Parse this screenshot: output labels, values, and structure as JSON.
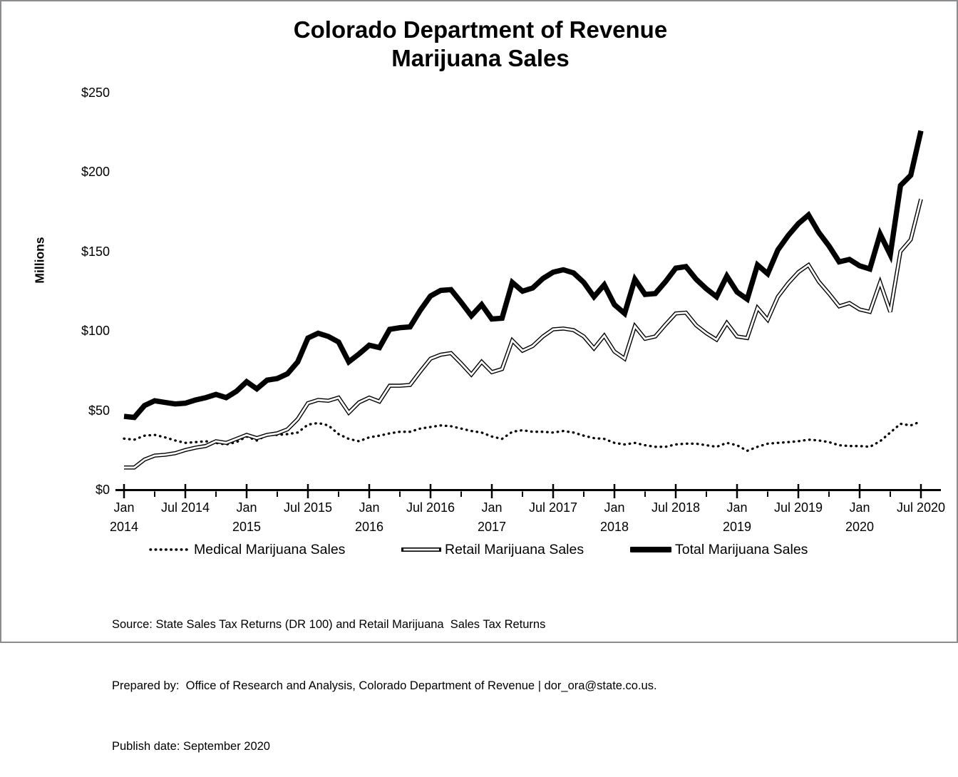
{
  "title": {
    "line1": "Colorado Department of Revenue",
    "line2": "Marijuana Sales"
  },
  "y_axis": {
    "label": "Millions",
    "ticks": [
      {
        "label": "$250",
        "value": 250
      },
      {
        "label": "$200",
        "value": 200
      },
      {
        "label": "$150",
        "value": 150
      },
      {
        "label": "$100",
        "value": 100
      },
      {
        "label": "$50",
        "value": 50
      },
      {
        "label": "$0",
        "value": 0
      }
    ]
  },
  "x_axis": {
    "ticks": [
      {
        "line1": "Jan",
        "line2": "2014"
      },
      {
        "line1": "Jul 2014",
        "line2": ""
      },
      {
        "line1": "Jan",
        "line2": "2015"
      },
      {
        "line1": "Jul 2015",
        "line2": ""
      },
      {
        "line1": "Jan",
        "line2": "2016"
      },
      {
        "line1": "Jul 2016",
        "line2": ""
      },
      {
        "line1": "Jan",
        "line2": "2017"
      },
      {
        "line1": "Jul 2017",
        "line2": ""
      },
      {
        "line1": "Jan",
        "line2": "2018"
      },
      {
        "line1": "Jul 2018",
        "line2": ""
      },
      {
        "line1": "Jan",
        "line2": "2019"
      },
      {
        "line1": "Jul 2019",
        "line2": ""
      },
      {
        "line1": "Jan",
        "line2": "2020"
      },
      {
        "line1": "Jul 2020",
        "line2": ""
      }
    ]
  },
  "legend": {
    "medical_label": "Medical Marijuana Sales",
    "retail_label": "Retail Marijuana Sales",
    "total_label": "Total Marijuana Sales"
  },
  "footer": {
    "source": "Source: State Sales Tax Returns (DR 100) and Retail Marijuana  Sales Tax Returns",
    "prepared_by": "Prepared by:  Office of Research and Analysis, Colorado Department of Revenue | dor_ora@state.co.us.",
    "publish_date": "Publish date: September 2020"
  },
  "colors": {
    "line_color": "#000000",
    "background": "#ffffff",
    "frame_border": "#898d90"
  },
  "chart_data": {
    "type": "line",
    "title": "Colorado Department of Revenue Marijuana Sales",
    "ylabel": "Millions",
    "unit": "USD millions",
    "ylim": [
      0,
      250
    ],
    "grid": false,
    "legend_position": "bottom",
    "x_frequency": "monthly",
    "x_start": "Jan 2014",
    "x_end": "Jul 2020",
    "months": [
      "Jan 2014",
      "Feb 2014",
      "Mar 2014",
      "Apr 2014",
      "May 2014",
      "Jun 2014",
      "Jul 2014",
      "Aug 2014",
      "Sep 2014",
      "Oct 2014",
      "Nov 2014",
      "Dec 2014",
      "Jan 2015",
      "Feb 2015",
      "Mar 2015",
      "Apr 2015",
      "May 2015",
      "Jun 2015",
      "Jul 2015",
      "Aug 2015",
      "Sep 2015",
      "Oct 2015",
      "Nov 2015",
      "Dec 2015",
      "Jan 2016",
      "Feb 2016",
      "Mar 2016",
      "Apr 2016",
      "May 2016",
      "Jun 2016",
      "Jul 2016",
      "Aug 2016",
      "Sep 2016",
      "Oct 2016",
      "Nov 2016",
      "Dec 2016",
      "Jan 2017",
      "Feb 2017",
      "Mar 2017",
      "Apr 2017",
      "May 2017",
      "Jun 2017",
      "Jul 2017",
      "Aug 2017",
      "Sep 2017",
      "Oct 2017",
      "Nov 2017",
      "Dec 2017",
      "Jan 2018",
      "Feb 2018",
      "Mar 2018",
      "Apr 2018",
      "May 2018",
      "Jun 2018",
      "Jul 2018",
      "Aug 2018",
      "Sep 2018",
      "Oct 2018",
      "Nov 2018",
      "Dec 2018",
      "Jan 2019",
      "Feb 2019",
      "Mar 2019",
      "Apr 2019",
      "May 2019",
      "Jun 2019",
      "Jul 2019",
      "Aug 2019",
      "Sep 2019",
      "Oct 2019",
      "Nov 2019",
      "Dec 2019",
      "Jan 2020",
      "Feb 2020",
      "Mar 2020",
      "Apr 2020",
      "May 2020",
      "Jun 2020",
      "Jul 2020"
    ],
    "series": [
      {
        "name": "Medical Marijuana Sales",
        "style": "dotted",
        "values": [
          32.2,
          31.5,
          34.0,
          34.5,
          33.0,
          31.0,
          29.5,
          30.0,
          30.5,
          29.5,
          28.5,
          30.0,
          33.5,
          31.0,
          34.5,
          34.5,
          35.0,
          36.0,
          41.0,
          42.0,
          40.5,
          35.0,
          32.0,
          30.5,
          33.0,
          34.0,
          35.5,
          36.5,
          36.5,
          38.5,
          39.5,
          40.5,
          40.0,
          38.5,
          37.0,
          36.0,
          33.5,
          32.0,
          36.5,
          37.5,
          36.5,
          36.5,
          36.0,
          37.0,
          36.0,
          34.0,
          32.5,
          32.0,
          29.5,
          28.5,
          29.5,
          28.0,
          27.0,
          27.0,
          28.5,
          29.0,
          29.0,
          28.0,
          27.0,
          29.5,
          28.0,
          24.5,
          27.0,
          29.0,
          29.5,
          30.0,
          30.5,
          31.5,
          31.0,
          30.0,
          28.0,
          27.5,
          27.5,
          27.0,
          30.5,
          36.0,
          41.5,
          40.5,
          43.0
        ]
      },
      {
        "name": "Retail Marijuana Sales",
        "style": "double-line",
        "values": [
          14.0,
          14.0,
          19.0,
          21.5,
          22.0,
          23.0,
          25.0,
          26.5,
          27.5,
          30.5,
          29.5,
          32.0,
          34.5,
          32.5,
          34.5,
          35.5,
          38.0,
          44.5,
          54.5,
          56.5,
          56.0,
          58.0,
          48.5,
          55.0,
          58.0,
          55.5,
          65.5,
          65.5,
          66.0,
          74.5,
          82.5,
          85.0,
          86.0,
          79.5,
          72.5,
          80.5,
          74.0,
          76.0,
          94.0,
          87.5,
          90.5,
          96.5,
          101.0,
          101.5,
          100.5,
          96.5,
          89.0,
          97.0,
          87.0,
          82.5,
          103.0,
          95.0,
          96.5,
          104.0,
          111.0,
          111.5,
          103.5,
          98.5,
          94.5,
          105.0,
          96.5,
          95.5,
          114.5,
          107.0,
          121.5,
          130.0,
          137.0,
          141.5,
          131.0,
          123.5,
          115.5,
          117.5,
          113.5,
          112.0,
          130.5,
          112.0,
          150.0,
          157.5,
          183.0
        ]
      },
      {
        "name": "Total Marijuana Sales",
        "style": "thick-solid",
        "values": [
          46.2,
          45.5,
          53.0,
          56.0,
          55.0,
          54.0,
          54.5,
          56.5,
          58.0,
          60.0,
          58.0,
          62.0,
          68.0,
          63.5,
          69.0,
          70.0,
          73.0,
          80.5,
          95.5,
          98.5,
          96.5,
          93.0,
          80.5,
          85.5,
          91.0,
          89.5,
          101.0,
          102.0,
          102.5,
          113.0,
          122.0,
          125.5,
          126.0,
          118.0,
          109.5,
          116.5,
          107.5,
          108.0,
          130.5,
          125.0,
          127.0,
          133.0,
          137.0,
          138.5,
          136.5,
          130.5,
          121.5,
          129.0,
          116.5,
          111.0,
          132.5,
          123.0,
          123.5,
          131.0,
          139.5,
          140.5,
          132.5,
          126.5,
          121.5,
          134.5,
          124.5,
          120.0,
          141.5,
          136.0,
          151.0,
          160.0,
          167.5,
          173.0,
          162.0,
          153.5,
          143.5,
          145.0,
          141.0,
          139.0,
          161.0,
          148.0,
          191.5,
          198.0,
          226.0
        ]
      }
    ]
  }
}
